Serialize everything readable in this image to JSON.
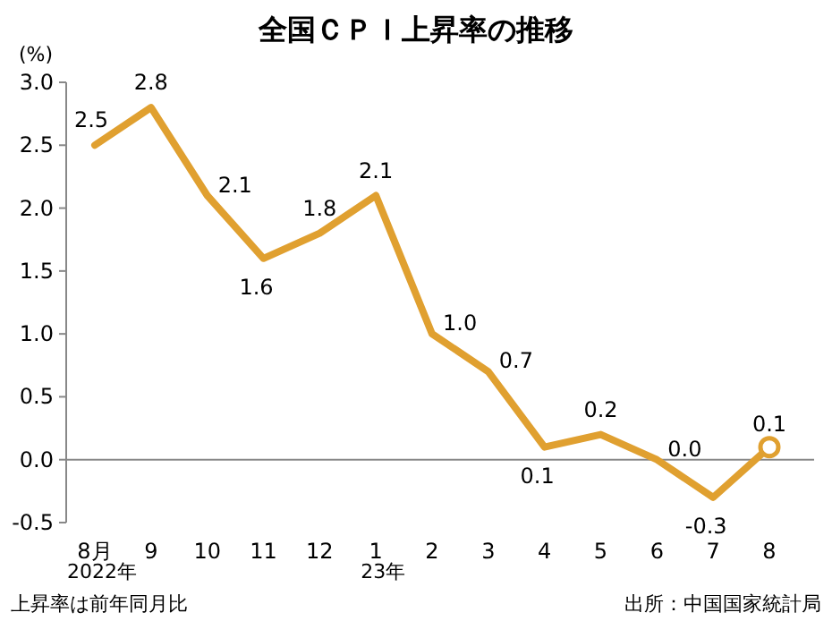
{
  "chart_data": {
    "type": "line",
    "title": "全国ＣＰＩ上昇率の推移",
    "ylabel": "(%)",
    "categories": [
      "8月",
      "9",
      "10",
      "11",
      "12",
      "1",
      "2",
      "3",
      "4",
      "5",
      "6",
      "7",
      "8"
    ],
    "series": [
      {
        "color": "#e0a030",
        "values": [
          2.5,
          2.8,
          2.1,
          1.6,
          1.8,
          2.1,
          1.0,
          0.7,
          0.1,
          0.2,
          0.0,
          -0.3,
          0.1
        ],
        "value_labels": [
          "2.5",
          "2.8",
          "2.1",
          "1.6",
          "1.8",
          "2.1",
          "1.0",
          "0.7",
          "0.1",
          "0.2",
          "0.0",
          "-0.3",
          "0.1"
        ]
      },
      {
        "type": "scatter",
        "color": "#e0a030",
        "x": [
          "8"
        ],
        "values": [
          0.1
        ]
      }
    ],
    "ylim": [
      -0.5,
      3.0
    ],
    "yticks": [
      {
        "value": -0.5,
        "label": "-0.5"
      },
      {
        "value": 0,
        "label": "0.0"
      },
      {
        "value": 0.5,
        "label": "0.5"
      },
      {
        "value": 1,
        "label": "1.0"
      },
      {
        "value": 1.5,
        "label": "1.5"
      },
      {
        "value": 2,
        "label": "2.0"
      },
      {
        "value": 2.5,
        "label": "2.5"
      },
      {
        "value": 3,
        "label": "3.0"
      }
    ],
    "ref_lines": [
      {
        "axis": "y",
        "value": 0,
        "color": "#888888"
      }
    ],
    "grid": false,
    "annotations": [
      "2022年",
      "23年",
      "上昇率は前年同月比",
      "出所：中国国家統計局"
    ]
  }
}
